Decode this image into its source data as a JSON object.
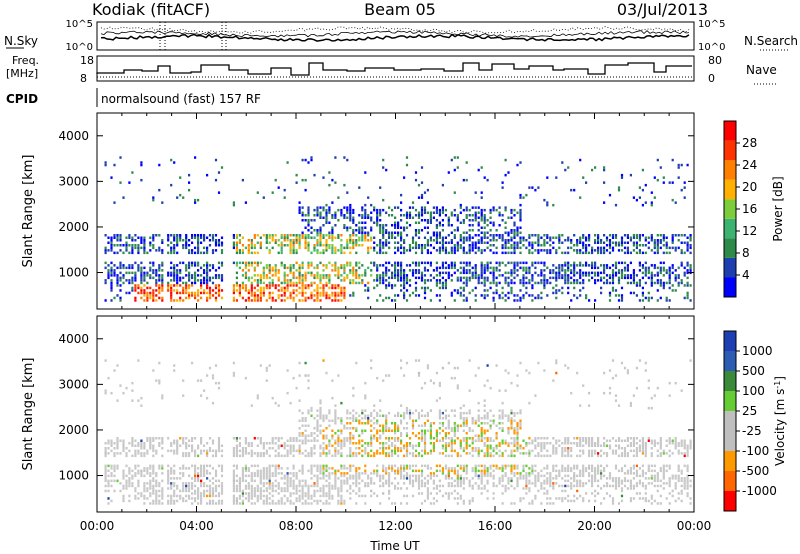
{
  "header": {
    "site": "Kodiak (fitACF)",
    "beam": "Beam 05",
    "date": "03/Jul/2013"
  },
  "noise_panel": {
    "left_label": "N.Sky",
    "right_label": "N.Search",
    "left_ticks": [
      "10^5",
      "10^0"
    ],
    "right_ticks": [
      "10^5",
      "10^0"
    ]
  },
  "freq_panel": {
    "left_label_1": "Freq.",
    "left_label_2": "[MHz]",
    "right_label": "Nave",
    "left_ticks": [
      "18",
      "8"
    ],
    "right_ticks": [
      "80",
      "0"
    ]
  },
  "cpid": {
    "label": "CPID",
    "text": "normalsound (fast) 157 RF"
  },
  "colors": {
    "power_scale": [
      "#0000ff",
      "#1f3fb0",
      "#2d8a4a",
      "#3cb371",
      "#7ccd3c",
      "#ffb000",
      "#ff7f00",
      "#ff3300",
      "#ff0000"
    ],
    "velocity_scale": [
      "#1e3fb4",
      "#2d5cb4",
      "#3a8a3a",
      "#66cc33",
      "#bfbfbf",
      "#bfbfbf",
      "#ff9900",
      "#ff6600",
      "#ff0000"
    ]
  },
  "chart_data": [
    {
      "type": "heatmap",
      "title": "Power",
      "ylabel": "Slant Range [km]",
      "yticks": [
        "1000",
        "2000",
        "3000",
        "4000"
      ],
      "ylim": [
        200,
        4500
      ],
      "xlim": [
        0,
        24
      ],
      "colorbar_label": "Power [dB]",
      "colorbar_ticks": [
        "4",
        "8",
        "12",
        "16",
        "20",
        "24",
        "28"
      ],
      "colorbar_range": [
        0,
        32
      ]
    },
    {
      "type": "heatmap",
      "title": "Velocity",
      "ylabel": "Slant Range [km]",
      "yticks": [
        "1000",
        "2000",
        "3000",
        "4000"
      ],
      "ylim": [
        200,
        4500
      ],
      "xlim": [
        0,
        24
      ],
      "xlabel": "Time UT",
      "xticks": [
        "00:00",
        "04:00",
        "08:00",
        "12:00",
        "16:00",
        "20:00",
        "00:00"
      ],
      "colorbar_label": "Velocity [m s^-1]",
      "colorbar_ticks": [
        "1000",
        "500",
        "100",
        "25",
        "-25",
        "-100",
        "-500",
        "-1000"
      ]
    }
  ]
}
